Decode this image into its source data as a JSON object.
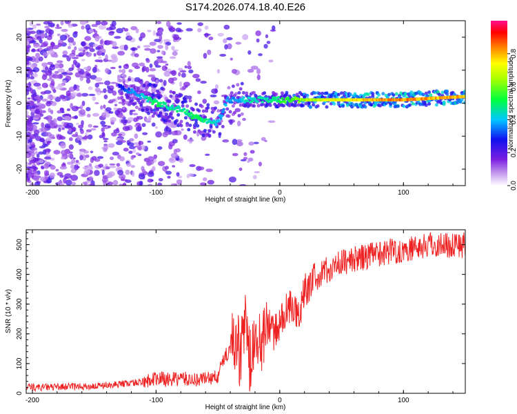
{
  "title": "S174.2026.074.18.40.E26",
  "chart_data": [
    {
      "type": "heatmap",
      "title": "S174.2026.074.18.40.E26",
      "xlabel": "Height of straight line (km)",
      "ylabel": "Frequency (Hz)",
      "xlim": [
        -205,
        150
      ],
      "ylim": [
        -25,
        25
      ],
      "xticks": [
        "-200",
        "-100",
        "0",
        "100"
      ],
      "yticks": [
        "20",
        "10",
        "0",
        "-10",
        "-20"
      ],
      "colorbar": {
        "label": "Normalized spectral amplitude",
        "range": [
          0.0,
          1.0
        ],
        "ticks": [
          "0.0",
          "0.2",
          "0.4",
          "0.6",
          "0.8"
        ]
      },
      "ridge": {
        "x": [
          -130,
          -110,
          -100,
          -90,
          -80,
          -70,
          -60,
          -50,
          -42,
          -35,
          -30,
          -20,
          -10,
          0,
          10,
          20,
          50,
          100,
          150
        ],
        "freq": [
          5,
          2,
          0,
          -1,
          -2,
          -4,
          -5,
          -6,
          1,
          1,
          1,
          1,
          1,
          1,
          1,
          1,
          1,
          1,
          2
        ],
        "amplitude": [
          0.3,
          0.45,
          0.55,
          0.5,
          0.5,
          0.55,
          0.5,
          0.45,
          0.4,
          0.4,
          0.45,
          0.5,
          0.5,
          0.55,
          0.6,
          0.7,
          0.8,
          0.9,
          0.85
        ]
      }
    },
    {
      "type": "line",
      "xlabel": "Height of straight line (km)",
      "ylabel": "SNR (10 * v/v)",
      "xlim": [
        -205,
        150
      ],
      "ylim": [
        0,
        550
      ],
      "xticks": [
        "-200",
        "-100",
        "0",
        "100"
      ],
      "yticks": [
        "0",
        "100",
        "200",
        "300",
        "400",
        "500"
      ],
      "color": "#ee2222",
      "series": [
        {
          "name": "SNR",
          "x": [
            -205,
            -190,
            -175,
            -160,
            -145,
            -130,
            -120,
            -110,
            -100,
            -90,
            -80,
            -70,
            -60,
            -50,
            -45,
            -40,
            -35,
            -32,
            -28,
            -24,
            -20,
            -15,
            -10,
            -5,
            0,
            5,
            10,
            15,
            20,
            30,
            40,
            50,
            60,
            70,
            80,
            90,
            100,
            110,
            120,
            130,
            140,
            150
          ],
          "y": [
            20,
            20,
            22,
            22,
            25,
            30,
            35,
            40,
            50,
            45,
            50,
            45,
            50,
            55,
            120,
            150,
            200,
            120,
            250,
            100,
            180,
            150,
            250,
            200,
            230,
            280,
            300,
            250,
            350,
            390,
            420,
            440,
            450,
            460,
            470,
            480,
            480,
            490,
            500,
            500,
            500,
            500
          ]
        }
      ]
    }
  ]
}
